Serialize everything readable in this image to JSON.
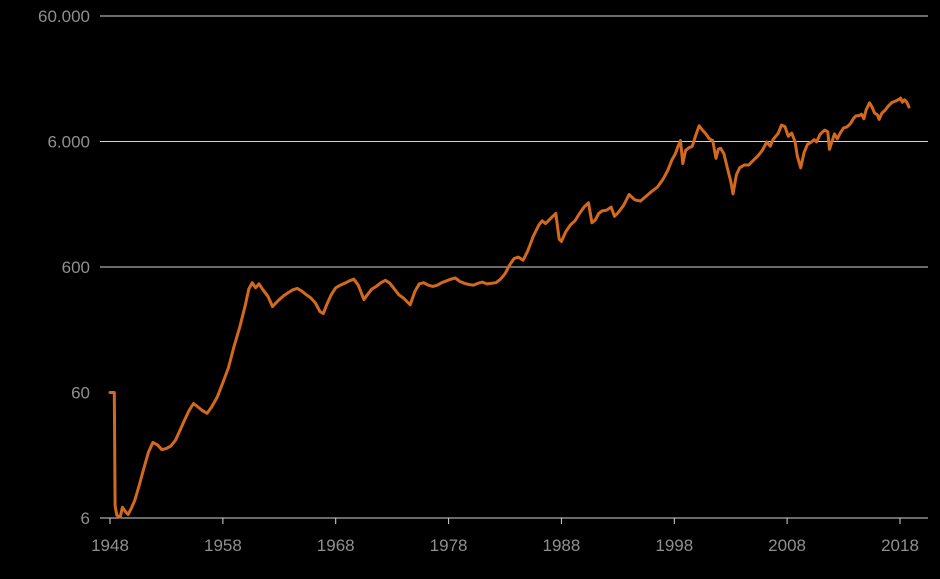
{
  "chart_data": {
    "type": "line",
    "title": "",
    "x_axis": {
      "range": [
        1948,
        2018
      ],
      "ticks": [
        {
          "value": 1948,
          "label": "1948"
        },
        {
          "value": 1958,
          "label": "1958"
        },
        {
          "value": 1968,
          "label": "1968"
        },
        {
          "value": 1978,
          "label": "1978"
        },
        {
          "value": 1988,
          "label": "1988"
        },
        {
          "value": 1998,
          "label": "1998"
        },
        {
          "value": 2008,
          "label": "2008"
        },
        {
          "value": 2018,
          "label": "2018"
        }
      ]
    },
    "y_axis": {
      "scale": "log",
      "range": [
        6,
        60000
      ],
      "ticks": [
        {
          "value": 60000,
          "label": "60.000",
          "gridline": true
        },
        {
          "value": 6000,
          "label": "6.000",
          "gridline": true
        },
        {
          "value": 600,
          "label": "600",
          "gridline": true
        },
        {
          "value": 60,
          "label": "60",
          "gridline": false
        },
        {
          "value": 6,
          "label": "6",
          "gridline": false
        }
      ]
    },
    "colors": {
      "background": "#000000",
      "gridline": "#d4d4d4",
      "axis": "#d4d4d4",
      "tick_label": "#8f8f8f",
      "line": "#d2691e"
    },
    "series": [
      {
        "color": "#d2691e",
        "points": [
          [
            1948.0,
            60
          ],
          [
            1948.38,
            60
          ],
          [
            1948.45,
            7.5
          ],
          [
            1948.6,
            6.3
          ],
          [
            1948.9,
            6.1
          ],
          [
            1949.1,
            7.3
          ],
          [
            1949.35,
            6.8
          ],
          [
            1949.6,
            6.4
          ],
          [
            1949.9,
            7.2
          ],
          [
            1950.2,
            8.3
          ],
          [
            1950.6,
            11
          ],
          [
            1951.0,
            15
          ],
          [
            1951.4,
            20
          ],
          [
            1951.8,
            24
          ],
          [
            1952.2,
            23
          ],
          [
            1952.6,
            21
          ],
          [
            1953.0,
            21.5
          ],
          [
            1953.4,
            22.5
          ],
          [
            1953.8,
            25
          ],
          [
            1954.2,
            30
          ],
          [
            1954.6,
            36
          ],
          [
            1955.0,
            43
          ],
          [
            1955.4,
            49
          ],
          [
            1955.8,
            46
          ],
          [
            1956.2,
            43
          ],
          [
            1956.6,
            41
          ],
          [
            1957.0,
            46
          ],
          [
            1957.5,
            55
          ],
          [
            1958.0,
            72
          ],
          [
            1958.5,
            95
          ],
          [
            1959.0,
            140
          ],
          [
            1959.5,
            200
          ],
          [
            1960.0,
            300
          ],
          [
            1960.3,
            400
          ],
          [
            1960.6,
            450
          ],
          [
            1960.9,
            410
          ],
          [
            1961.2,
            440
          ],
          [
            1961.5,
            400
          ],
          [
            1962.0,
            350
          ],
          [
            1962.4,
            290
          ],
          [
            1962.7,
            310
          ],
          [
            1963.0,
            330
          ],
          [
            1963.4,
            355
          ],
          [
            1963.8,
            375
          ],
          [
            1964.2,
            395
          ],
          [
            1964.6,
            405
          ],
          [
            1965.0,
            385
          ],
          [
            1965.4,
            360
          ],
          [
            1965.8,
            340
          ],
          [
            1966.2,
            310
          ],
          [
            1966.6,
            265
          ],
          [
            1966.9,
            255
          ],
          [
            1967.2,
            300
          ],
          [
            1967.6,
            360
          ],
          [
            1968.0,
            410
          ],
          [
            1968.4,
            430
          ],
          [
            1968.8,
            445
          ],
          [
            1969.2,
            465
          ],
          [
            1969.6,
            480
          ],
          [
            1970.0,
            430
          ],
          [
            1970.5,
            330
          ],
          [
            1970.8,
            360
          ],
          [
            1971.2,
            400
          ],
          [
            1971.6,
            420
          ],
          [
            1972.0,
            450
          ],
          [
            1972.4,
            470
          ],
          [
            1972.8,
            445
          ],
          [
            1973.2,
            400
          ],
          [
            1973.6,
            360
          ],
          [
            1974.0,
            340
          ],
          [
            1974.6,
            300
          ],
          [
            1975.0,
            380
          ],
          [
            1975.4,
            440
          ],
          [
            1975.8,
            450
          ],
          [
            1976.2,
            430
          ],
          [
            1976.6,
            420
          ],
          [
            1977.0,
            430
          ],
          [
            1977.4,
            450
          ],
          [
            1977.8,
            465
          ],
          [
            1978.2,
            480
          ],
          [
            1978.6,
            490
          ],
          [
            1979.0,
            460
          ],
          [
            1979.4,
            445
          ],
          [
            1979.8,
            435
          ],
          [
            1980.2,
            430
          ],
          [
            1980.6,
            445
          ],
          [
            1981.0,
            455
          ],
          [
            1981.4,
            440
          ],
          [
            1981.8,
            445
          ],
          [
            1982.2,
            450
          ],
          [
            1982.6,
            480
          ],
          [
            1983.0,
            530
          ],
          [
            1983.4,
            620
          ],
          [
            1983.8,
            700
          ],
          [
            1984.2,
            720
          ],
          [
            1984.6,
            680
          ],
          [
            1985.0,
            800
          ],
          [
            1985.5,
            1050
          ],
          [
            1986.0,
            1300
          ],
          [
            1986.3,
            1400
          ],
          [
            1986.6,
            1330
          ],
          [
            1987.0,
            1450
          ],
          [
            1987.5,
            1600
          ],
          [
            1987.8,
            1000
          ],
          [
            1988.0,
            960
          ],
          [
            1988.4,
            1150
          ],
          [
            1988.8,
            1300
          ],
          [
            1989.2,
            1400
          ],
          [
            1989.6,
            1600
          ],
          [
            1990.0,
            1800
          ],
          [
            1990.4,
            1950
          ],
          [
            1990.7,
            1350
          ],
          [
            1991.0,
            1420
          ],
          [
            1991.3,
            1600
          ],
          [
            1991.6,
            1680
          ],
          [
            1992.0,
            1700
          ],
          [
            1992.4,
            1800
          ],
          [
            1992.7,
            1520
          ],
          [
            1993.0,
            1620
          ],
          [
            1993.5,
            1850
          ],
          [
            1994.0,
            2270
          ],
          [
            1994.5,
            2060
          ],
          [
            1995.0,
            2010
          ],
          [
            1995.5,
            2200
          ],
          [
            1996.0,
            2400
          ],
          [
            1996.5,
            2600
          ],
          [
            1997.0,
            3000
          ],
          [
            1997.4,
            3500
          ],
          [
            1997.8,
            4300
          ],
          [
            1998.1,
            4800
          ],
          [
            1998.3,
            5400
          ],
          [
            1998.55,
            6100
          ],
          [
            1998.75,
            4000
          ],
          [
            1999.0,
            5100
          ],
          [
            1999.3,
            5350
          ],
          [
            1999.6,
            5500
          ],
          [
            1999.9,
            6700
          ],
          [
            2000.2,
            8000
          ],
          [
            2000.5,
            7400
          ],
          [
            2000.8,
            6900
          ],
          [
            2001.1,
            6300
          ],
          [
            2001.4,
            6100
          ],
          [
            2001.7,
            4400
          ],
          [
            2001.9,
            5200
          ],
          [
            2002.1,
            5300
          ],
          [
            2002.4,
            4800
          ],
          [
            2002.7,
            3700
          ],
          [
            2003.0,
            2900
          ],
          [
            2003.2,
            2300
          ],
          [
            2003.5,
            3250
          ],
          [
            2003.8,
            3700
          ],
          [
            2004.2,
            3900
          ],
          [
            2004.6,
            3900
          ],
          [
            2005.0,
            4250
          ],
          [
            2005.4,
            4600
          ],
          [
            2005.8,
            5100
          ],
          [
            2006.2,
            5950
          ],
          [
            2006.5,
            5500
          ],
          [
            2006.8,
            6300
          ],
          [
            2007.2,
            6950
          ],
          [
            2007.5,
            8100
          ],
          [
            2007.8,
            7900
          ],
          [
            2008.1,
            6600
          ],
          [
            2008.4,
            7000
          ],
          [
            2008.7,
            6000
          ],
          [
            2008.9,
            4600
          ],
          [
            2009.2,
            3700
          ],
          [
            2009.5,
            4900
          ],
          [
            2009.8,
            5700
          ],
          [
            2010.1,
            5900
          ],
          [
            2010.4,
            6200
          ],
          [
            2010.6,
            5950
          ],
          [
            2010.9,
            6800
          ],
          [
            2011.1,
            7100
          ],
          [
            2011.35,
            7400
          ],
          [
            2011.6,
            7150
          ],
          [
            2011.75,
            5200
          ],
          [
            2012.0,
            6100
          ],
          [
            2012.2,
            6900
          ],
          [
            2012.45,
            6300
          ],
          [
            2012.7,
            7000
          ],
          [
            2013.0,
            7700
          ],
          [
            2013.3,
            7850
          ],
          [
            2013.6,
            8300
          ],
          [
            2013.9,
            9200
          ],
          [
            2014.1,
            9600
          ],
          [
            2014.4,
            9650
          ],
          [
            2014.6,
            9900
          ],
          [
            2014.8,
            9100
          ],
          [
            2015.0,
            10700
          ],
          [
            2015.3,
            12200
          ],
          [
            2015.5,
            11400
          ],
          [
            2015.75,
            10100
          ],
          [
            2016.0,
            9800
          ],
          [
            2016.15,
            9000
          ],
          [
            2016.4,
            10100
          ],
          [
            2016.7,
            10700
          ],
          [
            2017.0,
            11600
          ],
          [
            2017.3,
            12300
          ],
          [
            2017.6,
            12600
          ],
          [
            2017.9,
            13000
          ],
          [
            2018.05,
            13300
          ],
          [
            2018.2,
            12350
          ],
          [
            2018.4,
            12900
          ],
          [
            2018.6,
            12350
          ],
          [
            2018.8,
            11300
          ]
        ]
      }
    ]
  }
}
